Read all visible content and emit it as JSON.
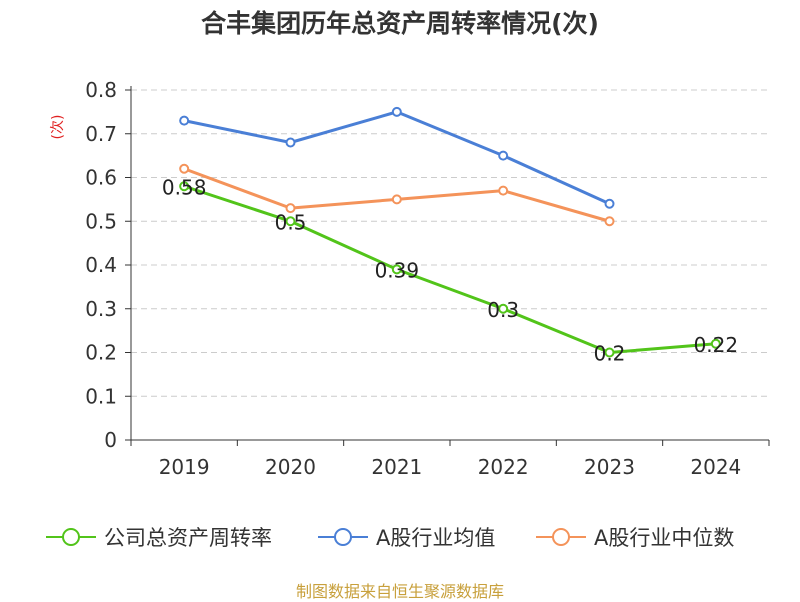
{
  "title": "合丰集团历年总资产周转率情况(次)",
  "source": "制图数据来自恒生聚源数据库",
  "chart_data": {
    "type": "line",
    "title": "合丰集团历年总资产周转率情况(次)",
    "ylabel": "(次)",
    "xlabel": "",
    "categories": [
      "2019",
      "2020",
      "2021",
      "2022",
      "2023",
      "2024"
    ],
    "ylim": [
      0,
      0.8
    ],
    "yticks": [
      "0",
      "0.1",
      "0.2",
      "0.3",
      "0.4",
      "0.5",
      "0.6",
      "0.7",
      "0.8"
    ],
    "grid": true,
    "legend_position": "bottom",
    "series": [
      {
        "name": "公司总资产周转率",
        "color": "#52c41a",
        "values": [
          0.58,
          0.5,
          0.39,
          0.3,
          0.2,
          0.22
        ],
        "data_labels": [
          "0.58",
          "0.5",
          "0.39",
          "0.3",
          "0.2",
          "0.22"
        ]
      },
      {
        "name": "A股行业均值",
        "color": "#4a7fd6",
        "values": [
          0.73,
          0.68,
          0.75,
          0.65,
          0.54,
          null
        ]
      },
      {
        "name": "A股行业中位数",
        "color": "#f4935a",
        "values": [
          0.62,
          0.53,
          0.55,
          0.57,
          0.5,
          null
        ]
      }
    ]
  }
}
